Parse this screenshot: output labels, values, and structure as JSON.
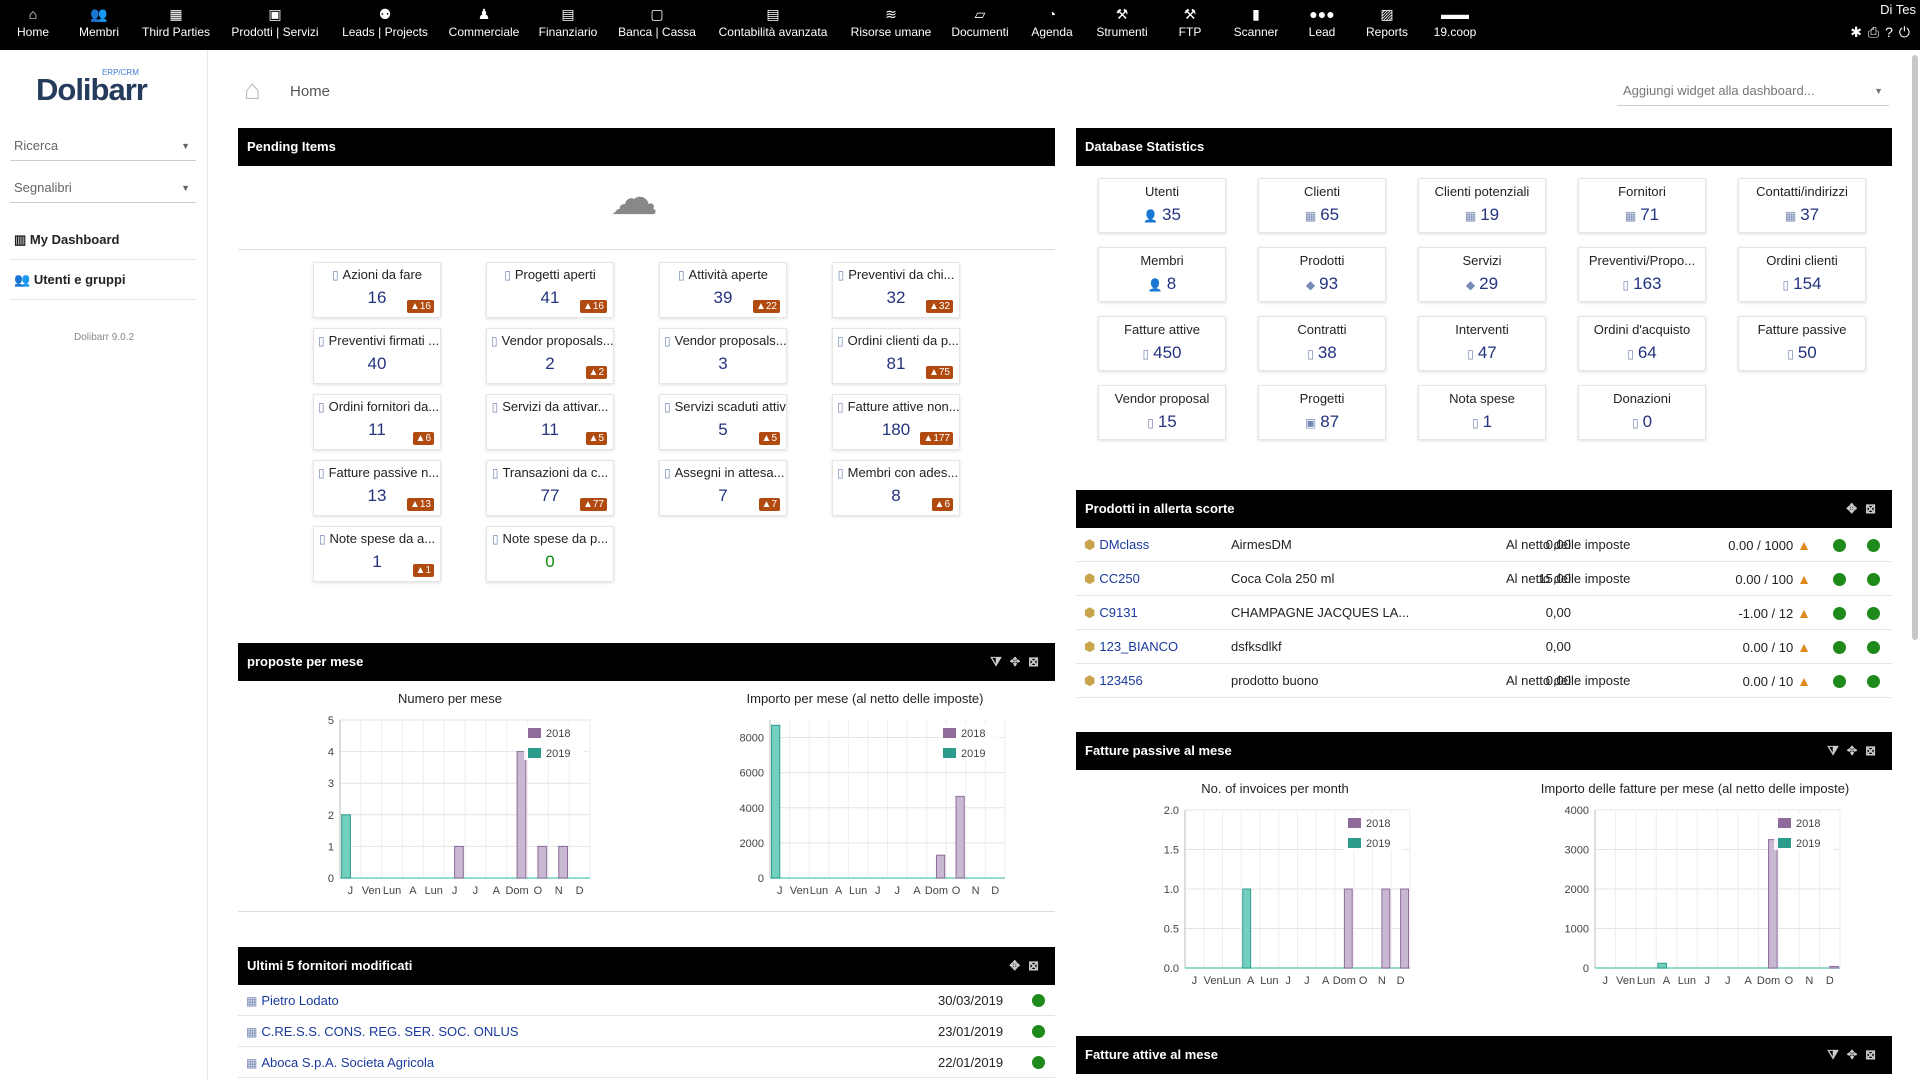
{
  "topmenu": [
    {
      "label": "Home",
      "icon": "home-icon"
    },
    {
      "label": "Membri",
      "icon": "members-icon"
    },
    {
      "label": "Third Parties",
      "icon": "third-parties-icon"
    },
    {
      "label": "Prodotti | Servizi",
      "icon": "products-icon"
    },
    {
      "label": "Leads | Projects",
      "icon": "projects-icon"
    },
    {
      "label": "Commerciale",
      "icon": "commercial-icon"
    },
    {
      "label": "Finanziario",
      "icon": "finance-icon"
    },
    {
      "label": "Banca | Cassa",
      "icon": "bank-icon"
    },
    {
      "label": "Contabilità avanzata",
      "icon": "accounting-icon"
    },
    {
      "label": "Risorse umane",
      "icon": "hr-icon"
    },
    {
      "label": "Documenti",
      "icon": "documents-icon"
    },
    {
      "label": "Agenda",
      "icon": "agenda-icon"
    },
    {
      "label": "Strumenti",
      "icon": "tools-icon"
    },
    {
      "label": "FTP",
      "icon": "ftp-icon"
    },
    {
      "label": "Scanner",
      "icon": "scanner-icon"
    },
    {
      "label": "Lead",
      "icon": "lead-icon"
    },
    {
      "label": "Reports",
      "icon": "reports-icon"
    },
    {
      "label": "19.coop",
      "icon": "coop-icon"
    }
  ],
  "user": {
    "name": "Di Tes"
  },
  "sidebar": {
    "logo": "Dolibarr",
    "logo_tag": "ERP/CRM",
    "search": "Ricerca",
    "bookmarks": "Segnalibri",
    "my_dashboard": "My Dashboard",
    "users_groups": "Utenti e gruppi",
    "version": "Dolibarr 9.0.2"
  },
  "header": {
    "title": "Home",
    "add_widget": "Aggiungi widget alla dashboard..."
  },
  "pending": {
    "title": "Pending Items",
    "items": [
      {
        "label": "Azioni da fare",
        "value": "16",
        "warn": "16"
      },
      {
        "label": "Progetti aperti",
        "value": "41",
        "warn": "16"
      },
      {
        "label": "Attività aperte",
        "value": "39",
        "warn": "22"
      },
      {
        "label": "Preventivi da chi...",
        "value": "32",
        "warn": "32"
      },
      {
        "label": "Preventivi firmati ...",
        "value": "40",
        "warn": ""
      },
      {
        "label": "Vendor proposals...",
        "value": "2",
        "warn": "2"
      },
      {
        "label": "Vendor proposals...",
        "value": "3",
        "warn": ""
      },
      {
        "label": "Ordini clienti da p...",
        "value": "81",
        "warn": "75"
      },
      {
        "label": "Ordini fornitori da...",
        "value": "11",
        "warn": "6"
      },
      {
        "label": "Servizi da attivar...",
        "value": "11",
        "warn": "5"
      },
      {
        "label": "Servizi scaduti attivi",
        "value": "5",
        "warn": "5"
      },
      {
        "label": "Fatture attive non...",
        "value": "180",
        "warn": "177"
      },
      {
        "label": "Fatture passive n...",
        "value": "13",
        "warn": "13"
      },
      {
        "label": "Transazioni da c...",
        "value": "77",
        "warn": "77"
      },
      {
        "label": "Assegni in attesa...",
        "value": "7",
        "warn": "7"
      },
      {
        "label": "Membri con ades...",
        "value": "8",
        "warn": "6"
      },
      {
        "label": "Note spese da a...",
        "value": "1",
        "warn": "1"
      },
      {
        "label": "Note spese da p...",
        "value": "0",
        "warn": ""
      }
    ]
  },
  "stats": {
    "title": "Database Statistics",
    "items": [
      {
        "label": "Utenti",
        "value": "35"
      },
      {
        "label": "Clienti",
        "value": "65"
      },
      {
        "label": "Clienti potenziali",
        "value": "19"
      },
      {
        "label": "Fornitori",
        "value": "71"
      },
      {
        "label": "Contatti/indirizzi",
        "value": "37"
      },
      {
        "label": "Membri",
        "value": "8"
      },
      {
        "label": "Prodotti",
        "value": "93"
      },
      {
        "label": "Servizi",
        "value": "29"
      },
      {
        "label": "Preventivi/Propo...",
        "value": "163"
      },
      {
        "label": "Ordini clienti",
        "value": "154"
      },
      {
        "label": "Fatture attive",
        "value": "450"
      },
      {
        "label": "Contratti",
        "value": "38"
      },
      {
        "label": "Interventi",
        "value": "47"
      },
      {
        "label": "Ordini d'acquisto",
        "value": "64"
      },
      {
        "label": "Fatture passive",
        "value": "50"
      },
      {
        "label": "Vendor proposal",
        "value": "15"
      },
      {
        "label": "Progetti",
        "value": "87"
      },
      {
        "label": "Nota spese",
        "value": "1"
      },
      {
        "label": "Donazioni",
        "value": "0"
      }
    ]
  },
  "stock": {
    "title": "Prodotti in allerta scorte",
    "rows": [
      {
        "ref": "DMclass",
        "name": "AirmesDM",
        "price": "0,00",
        "tax": "Al netto delle imposte",
        "qty": "0.00 / 1000"
      },
      {
        "ref": "CC250",
        "name": "Coca Cola 250 ml",
        "price": "15,00",
        "tax": "Al netto delle imposte",
        "qty": "0.00 / 100"
      },
      {
        "ref": "C9131",
        "name": "CHAMPAGNE JACQUES LA...",
        "price": "0,00",
        "tax": "",
        "qty": "-1.00 / 12"
      },
      {
        "ref": "123_BIANCO",
        "name": "dsfksdlkf",
        "price": "0,00",
        "tax": "",
        "qty": "0.00 / 10"
      },
      {
        "ref": "123456",
        "name": "prodotto buono",
        "price": "0,00",
        "tax": "Al netto delle imposte",
        "qty": "0.00 / 10"
      }
    ]
  },
  "proposals_panel": {
    "title": "proposte per mese"
  },
  "supplier_invoices_panel": {
    "title": "Fatture passive al mese"
  },
  "customer_invoices_panel": {
    "title": "Fatture attive al mese"
  },
  "suppliers": {
    "title": "Ultimi 5 fornitori modificati",
    "rows": [
      {
        "name": "Pietro Lodato",
        "date": "30/03/2019"
      },
      {
        "name": "C.RE.S.S. CONS. REG. SER. SOC. ONLUS",
        "date": "23/01/2019"
      },
      {
        "name": "Aboca S.p.A. Societa Agricola",
        "date": "22/01/2019"
      }
    ]
  },
  "colors": {
    "series2018": "#c9b8d1",
    "series2019": "#73cfc0"
  },
  "chart_data": [
    {
      "type": "bar",
      "title": "Numero per mese",
      "categories": [
        "J",
        "Ven",
        "Lun",
        "A",
        "Lun",
        "J",
        "J",
        "A",
        "Dom",
        "O",
        "N",
        "D"
      ],
      "ylim": [
        0,
        5
      ],
      "yticks": [
        "0",
        "1",
        "2",
        "3",
        "4",
        "5"
      ],
      "series": [
        {
          "name": "2018",
          "values": [
            0,
            0,
            0,
            0,
            0,
            1,
            0,
            0,
            4,
            1,
            1,
            0
          ]
        },
        {
          "name": "2019",
          "values": [
            2,
            0,
            0,
            0,
            0,
            0,
            0,
            0,
            0,
            0,
            0,
            0
          ]
        }
      ]
    },
    {
      "type": "bar",
      "title": "Importo per mese (al netto delle imposte)",
      "categories": [
        "J",
        "Ven",
        "Lun",
        "A",
        "Lun",
        "J",
        "J",
        "A",
        "Dom",
        "O",
        "N",
        "D"
      ],
      "ylim": [
        0,
        9000
      ],
      "yticks": [
        "0",
        "2000",
        "4000",
        "6000",
        "8000"
      ],
      "series": [
        {
          "name": "2018",
          "values": [
            0,
            0,
            0,
            0,
            0,
            0,
            0,
            0,
            1300,
            4650,
            0,
            0
          ]
        },
        {
          "name": "2019",
          "values": [
            8700,
            0,
            0,
            0,
            0,
            0,
            0,
            0,
            0,
            0,
            0,
            0
          ]
        }
      ]
    },
    {
      "type": "bar",
      "title": "No. of invoices per month",
      "categories": [
        "J",
        "Ven",
        "Lun",
        "A",
        "Lun",
        "J",
        "J",
        "A",
        "Dom",
        "O",
        "N",
        "D"
      ],
      "ylim": [
        0,
        2
      ],
      "yticks": [
        "0.0",
        "0.5",
        "1.0",
        "1.5",
        "2.0"
      ],
      "series": [
        {
          "name": "2018",
          "values": [
            0,
            0,
            0,
            0,
            0,
            0,
            0,
            0,
            1,
            0,
            1,
            1
          ]
        },
        {
          "name": "2019",
          "values": [
            0,
            0,
            0,
            1,
            0,
            0,
            0,
            0,
            0,
            0,
            0,
            0
          ]
        }
      ]
    },
    {
      "type": "bar",
      "title": "Importo delle fatture per mese (al netto delle imposte)",
      "categories": [
        "J",
        "Ven",
        "Lun",
        "A",
        "Lun",
        "J",
        "J",
        "A",
        "Dom",
        "O",
        "N",
        "D"
      ],
      "ylim": [
        0,
        4000
      ],
      "yticks": [
        "0",
        "1000",
        "2000",
        "3000",
        "4000"
      ],
      "series": [
        {
          "name": "2018",
          "values": [
            0,
            0,
            0,
            0,
            0,
            0,
            0,
            0,
            3250,
            0,
            0,
            40
          ]
        },
        {
          "name": "2019",
          "values": [
            0,
            0,
            0,
            120,
            0,
            0,
            0,
            0,
            0,
            0,
            0,
            0
          ]
        }
      ]
    }
  ]
}
